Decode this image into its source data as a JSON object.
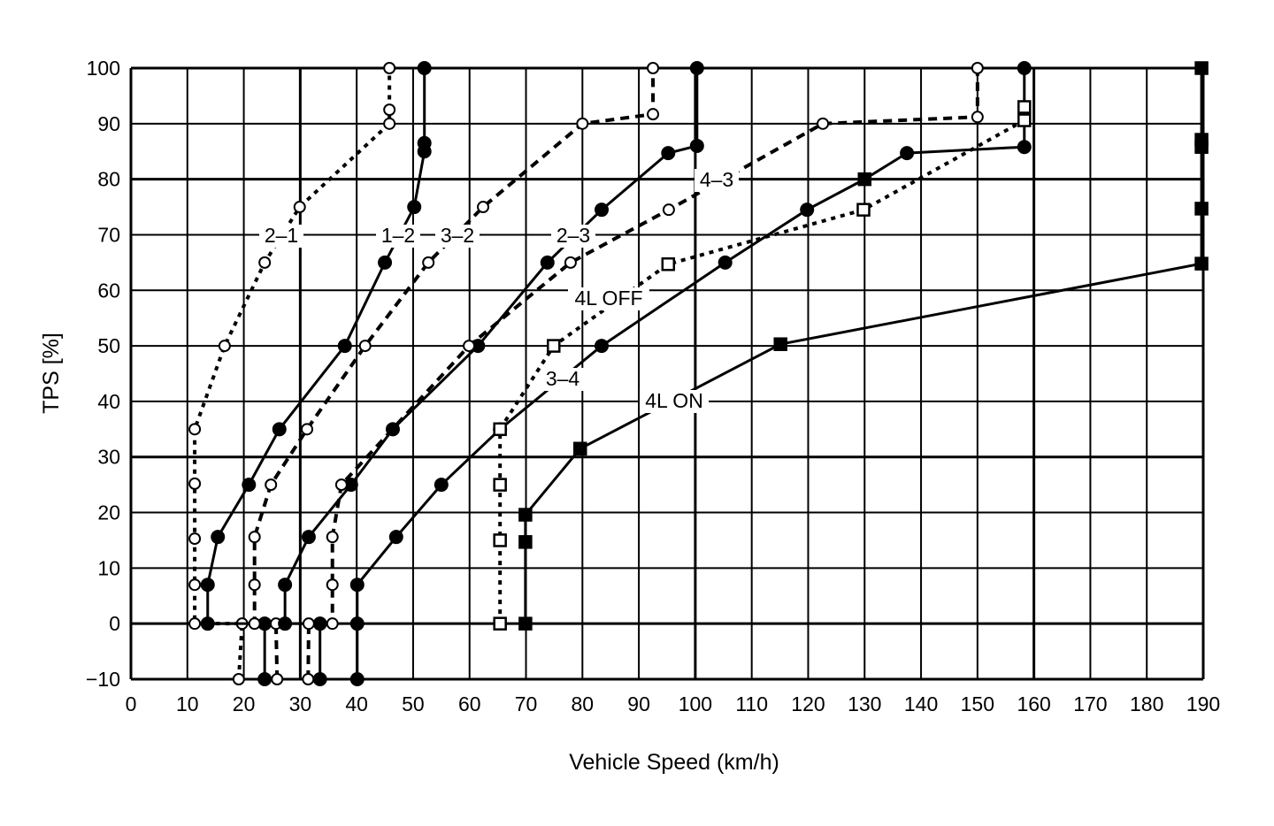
{
  "chart_data": {
    "type": "line",
    "xlabel": "Vehicle Speed (km/h)",
    "ylabel": "TPS [%]",
    "xlim": [
      0,
      190
    ],
    "ylim": [
      -10,
      100
    ],
    "xticks": [
      0,
      10,
      20,
      30,
      40,
      50,
      60,
      70,
      80,
      90,
      100,
      110,
      120,
      130,
      140,
      150,
      160,
      170,
      180,
      190
    ],
    "yticks": [
      -10,
      0,
      10,
      20,
      30,
      40,
      50,
      60,
      70,
      80,
      90,
      100
    ],
    "grid": true,
    "colors": {
      "line": "#000000",
      "background": "#ffffff"
    },
    "series": [
      {
        "name": "2–1",
        "marker": "open-circle",
        "line": "dotted",
        "x": [
          19.1,
          19.7,
          11.3,
          11.3,
          11.3,
          11.3,
          11.3,
          16.6,
          23.7,
          29.9,
          45.8,
          45.8,
          45.8
        ],
        "y": [
          -10,
          0,
          0,
          7,
          15.3,
          25.2,
          35,
          50,
          65,
          75,
          90,
          92.5,
          100
        ]
      },
      {
        "name": "1–2",
        "marker": "filled-circle",
        "line": "solid",
        "x": [
          23.7,
          23.7,
          13.6,
          13.6,
          15.4,
          20.9,
          26.3,
          37.9,
          45,
          50.2,
          52,
          52,
          52
        ],
        "y": [
          -10,
          0,
          0,
          7,
          15.6,
          25,
          35,
          50,
          65,
          75,
          85,
          86.5,
          100
        ]
      },
      {
        "name": "3–2",
        "marker": "open-circle",
        "line": "dashed",
        "x": [
          25.9,
          25.7,
          21.9,
          21.9,
          21.9,
          24.8,
          31.2,
          41.5,
          52.7,
          62.4,
          80,
          92.5,
          92.5
        ],
        "y": [
          -10,
          0,
          0,
          7,
          15.6,
          25,
          35,
          50,
          65,
          75,
          90,
          91.7,
          100
        ]
      },
      {
        "name": "2–3",
        "marker": "filled-circle",
        "line": "solid",
        "x": [
          33.5,
          33.5,
          27.3,
          27.3,
          31.5,
          39,
          46.4,
          61.5,
          73.8,
          83.4,
          95.2,
          100.3,
          100.3
        ],
        "y": [
          -10,
          0,
          0,
          7,
          15.6,
          25,
          35,
          50,
          65,
          74.5,
          84.7,
          86,
          100
        ]
      },
      {
        "name": "4–3",
        "marker": "open-circle",
        "line": "dashed",
        "x": [
          31.4,
          31.5,
          35.7,
          35.7,
          35.7,
          37.3,
          59.9,
          77.9,
          95.3,
          122.6,
          150,
          150
        ],
        "y": [
          -10,
          0,
          0,
          7,
          15.6,
          25,
          50,
          65,
          74.5,
          90,
          91.2,
          100
        ]
      },
      {
        "name": "3–4",
        "marker": "filled-circle",
        "line": "solid",
        "x": [
          40.1,
          40.1,
          40.1,
          47,
          55,
          65.4,
          83.4,
          105.3,
          119.8,
          130,
          137.5,
          158.3,
          158.3
        ],
        "y": [
          -10,
          0,
          7,
          15.6,
          25,
          35,
          50,
          65,
          74.5,
          80,
          84.7,
          85.8,
          100
        ]
      },
      {
        "name": "4L OFF",
        "marker": "open-square",
        "line": "dotted",
        "x": [
          65.4,
          65.4,
          65.4,
          65.4,
          74.9,
          95.2,
          129.8,
          158.3,
          158.3
        ],
        "y": [
          0,
          15,
          25,
          35,
          50,
          64.7,
          74.5,
          90.6,
          93
        ]
      },
      {
        "name": "4L ON",
        "marker": "filled-square",
        "line": "solid",
        "x": [
          69.9,
          69.9,
          69.9,
          79.6,
          115.1,
          189.7,
          189.7,
          189.7,
          189.7,
          189.7
        ],
        "y": [
          0,
          14.7,
          19.6,
          31.5,
          50.3,
          64.8,
          74.7,
          85.8,
          87.1,
          100
        ]
      }
    ],
    "annotations": [
      "2–1",
      "1–2",
      "3–2",
      "2–3",
      "4–3",
      "4L OFF",
      "3–4",
      "4L ON"
    ]
  }
}
